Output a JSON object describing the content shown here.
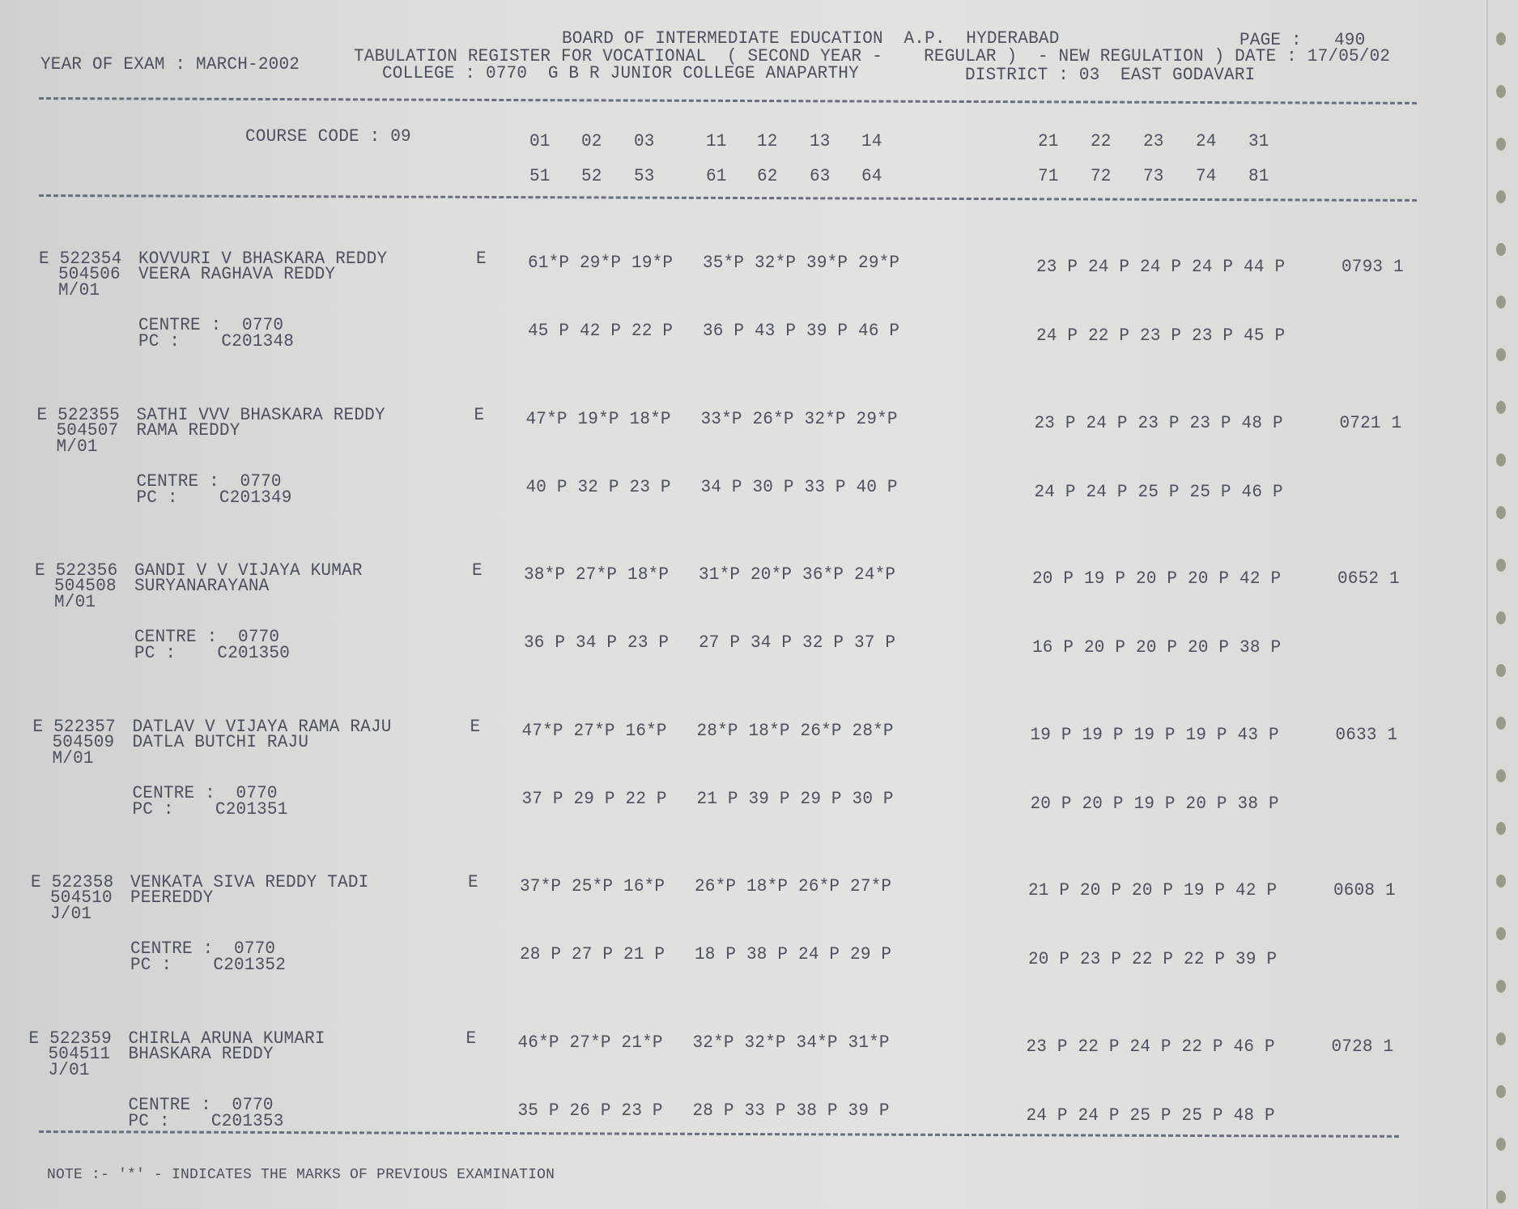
{
  "header": {
    "board": "BOARD OF INTERMEDIATE EDUCATION  A.P.  HYDERABAD",
    "page_label": "PAGE :",
    "page": "490",
    "title": "TABULATION REGISTER FOR VOCATIONAL  ( SECOND YEAR -    REGULAR )  - NEW REGULATION ) DATE : 17/05/02",
    "year_of_exam": "YEAR OF EXAM : MARCH-2002",
    "college": "COLLEGE : 0770  G B R JUNIOR COLLEGE ANAPARTHY",
    "district": "DISTRICT : 03  EAST GODAVARI"
  },
  "columns": {
    "course_code": "COURSE CODE : 09",
    "row1": [
      "01",
      "02",
      "03",
      "11",
      "12",
      "13",
      "14",
      "21",
      "22",
      "23",
      "24",
      "31"
    ],
    "row2": [
      "51",
      "52",
      "53",
      "61",
      "62",
      "63",
      "64",
      "71",
      "72",
      "73",
      "74",
      "81"
    ]
  },
  "records": [
    {
      "id": "E 522354",
      "reg": "504506",
      "group": "M/01",
      "name": "KOVVURI V BHASKARA REDDY",
      "father": "VEERA RAGHAVA REDDY",
      "medium": "E",
      "m1": "61*P 29*P 19*P",
      "m2": "35*P 32*P 39*P 29*P",
      "m3": "23 P 24 P 24 P 24 P 44 P",
      "total": "0793 1",
      "centre": "CENTRE :  0770",
      "pc": "PC :    C201348",
      "s1": "45 P 42 P 22 P",
      "s2": "36 P 43 P 39 P 46 P",
      "s3": "24 P 22 P 23 P 23 P 45 P"
    },
    {
      "id": "E 522355",
      "reg": "504507",
      "group": "M/01",
      "name": "SATHI VVV BHASKARA REDDY",
      "father": "RAMA REDDY",
      "medium": "E",
      "m1": "47*P 19*P 18*P",
      "m2": "33*P 26*P 32*P 29*P",
      "m3": "23 P 24 P 23 P 23 P 48 P",
      "total": "0721 1",
      "centre": "CENTRE :  0770",
      "pc": "PC :    C201349",
      "s1": "40 P 32 P 23 P",
      "s2": "34 P 30 P 33 P 40 P",
      "s3": "24 P 24 P 25 P 25 P 46 P"
    },
    {
      "id": "E 522356",
      "reg": "504508",
      "group": "M/01",
      "name": "GANDI V V VIJAYA KUMAR",
      "father": "SURYANARAYANA",
      "medium": "E",
      "m1": "38*P 27*P 18*P",
      "m2": "31*P 20*P 36*P 24*P",
      "m3": "20 P 19 P 20 P 20 P 42 P",
      "total": "0652 1",
      "centre": "CENTRE :  0770",
      "pc": "PC :    C201350",
      "s1": "36 P 34 P 23 P",
      "s2": "27 P 34 P 32 P 37 P",
      "s3": "16 P 20 P 20 P 20 P 38 P"
    },
    {
      "id": "E 522357",
      "reg": "504509",
      "group": "M/01",
      "name": "DATLAV V VIJAYA RAMA RAJU",
      "father": "DATLA BUTCHI RAJU",
      "medium": "E",
      "m1": "47*P 27*P 16*P",
      "m2": "28*P 18*P 26*P 28*P",
      "m3": "19 P 19 P 19 P 19 P 43 P",
      "total": "0633 1",
      "centre": "CENTRE :  0770",
      "pc": "PC :    C201351",
      "s1": "37 P 29 P 22 P",
      "s2": "21 P 39 P 29 P 30 P",
      "s3": "20 P 20 P 19 P 20 P 38 P"
    },
    {
      "id": "E 522358",
      "reg": "504510",
      "group": "J/01",
      "name": "VENKATA SIVA REDDY TADI",
      "father": "PEEREDDY",
      "medium": "E",
      "m1": "37*P 25*P 16*P",
      "m2": "26*P 18*P 26*P 27*P",
      "m3": "21 P 20 P 20 P 19 P 42 P",
      "total": "0608 1",
      "centre": "CENTRE :  0770",
      "pc": "PC :    C201352",
      "s1": "28 P 27 P 21 P",
      "s2": "18 P 38 P 24 P 29 P",
      "s3": "20 P 23 P 22 P 22 P 39 P"
    },
    {
      "id": "E 522359",
      "reg": "504511",
      "group": "J/01",
      "name": "CHIRLA ARUNA KUMARI",
      "father": "BHASKARA REDDY",
      "medium": "E",
      "m1": "46*P 27*P 21*P",
      "m2": "32*P 32*P 34*P 31*P",
      "m3": "23 P 22 P 24 P 22 P 46 P",
      "total": "0728 1",
      "centre": "CENTRE :  0770",
      "pc": "PC :    C201353",
      "s1": "35 P 26 P 23 P",
      "s2": "28 P 33 P 38 P 39 P",
      "s3": "24 P 24 P 25 P 25 P 48 P"
    }
  ],
  "note": "NOTE :- '*' - INDICATES THE MARKS OF PREVIOUS EXAMINATION"
}
